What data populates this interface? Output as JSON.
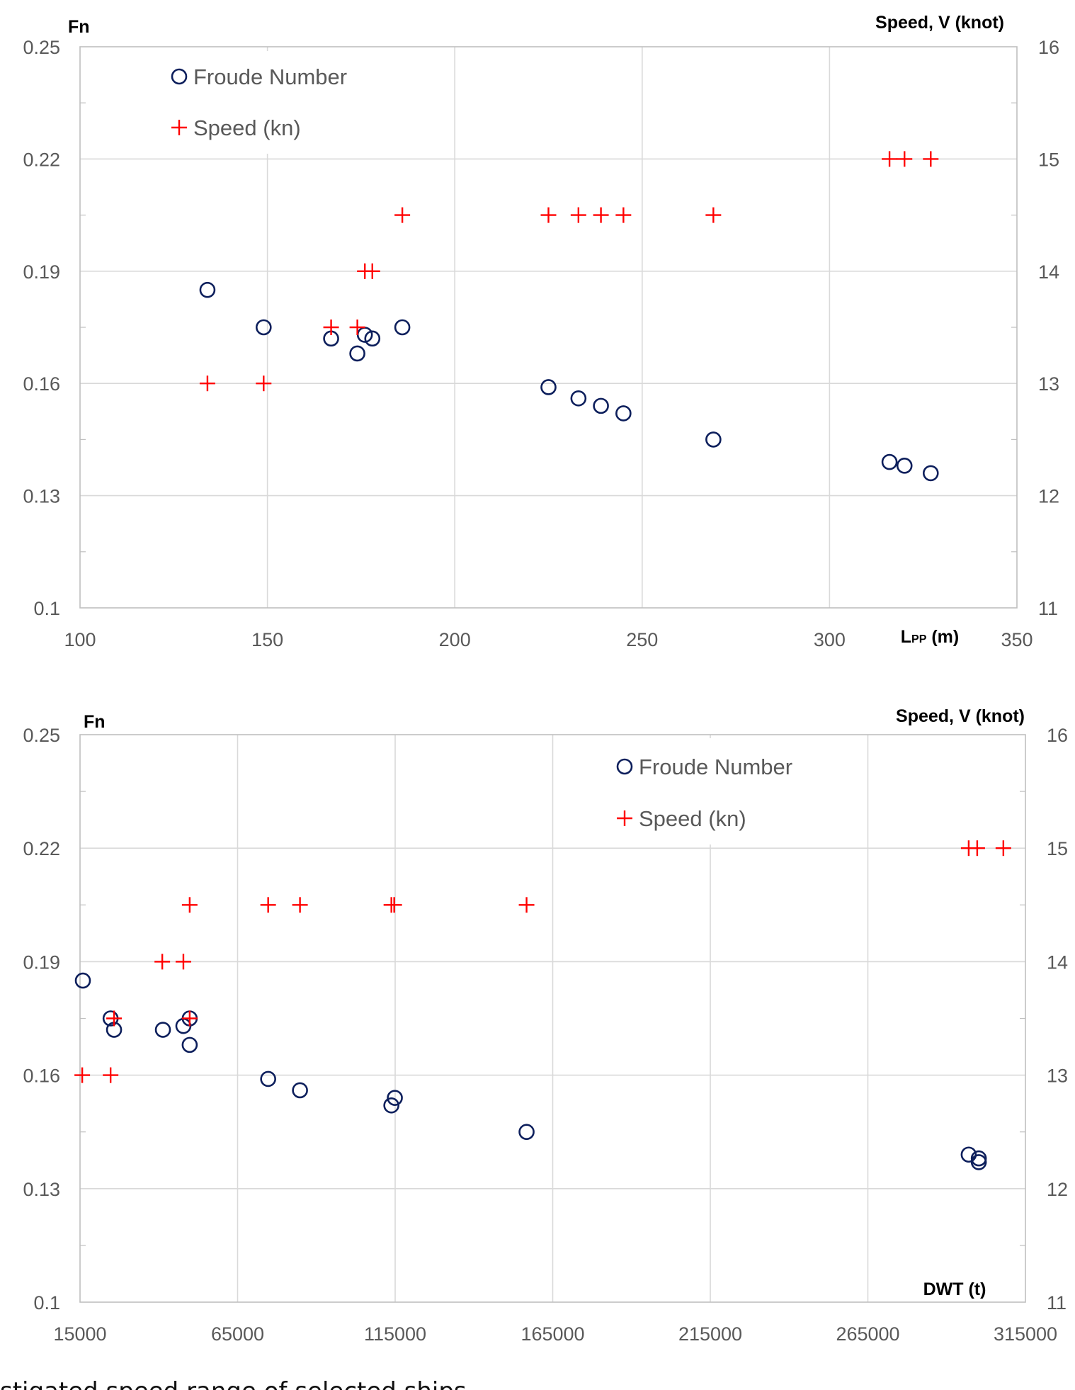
{
  "colors": {
    "froude": "#0d1f5c",
    "speed": "#ff0000",
    "grid": "#d9d9d9",
    "tick_text": "#595959"
  },
  "caption": "stigated speed range of selected ships",
  "chart_data": [
    {
      "type": "scatter",
      "title": "",
      "xlabel": "L",
      "xlabel_sub": "PP",
      "xlabel_suffix": " (m)",
      "ylabel": "Fn",
      "y2label": "Speed, V (knot)",
      "xlim": [
        100,
        350
      ],
      "ylim": [
        0.1,
        0.25
      ],
      "y2lim": [
        11,
        16
      ],
      "xticks": [
        100,
        150,
        200,
        250,
        300,
        350
      ],
      "yticks": [
        "0.1",
        "0.13",
        "0.16",
        "0.19",
        "0.22",
        "0.25"
      ],
      "y2ticks": [
        "11",
        "12",
        "13",
        "14",
        "15",
        "16"
      ],
      "grid": true,
      "legend_position": "top-left",
      "legend": [
        "Froude Number",
        "Speed (kn)"
      ],
      "series": [
        {
          "name": "Froude Number",
          "axis": "left",
          "marker": "circle",
          "points": [
            [
              134,
              0.185
            ],
            [
              149,
              0.175
            ],
            [
              167,
              0.172
            ],
            [
              174,
              0.168
            ],
            [
              176,
              0.173
            ],
            [
              178,
              0.172
            ],
            [
              186,
              0.175
            ],
            [
              225,
              0.159
            ],
            [
              233,
              0.156
            ],
            [
              239,
              0.154
            ],
            [
              245,
              0.152
            ],
            [
              269,
              0.145
            ],
            [
              316,
              0.139
            ],
            [
              320,
              0.138
            ],
            [
              327,
              0.136
            ]
          ]
        },
        {
          "name": "Speed (kn)",
          "axis": "right",
          "marker": "plus",
          "points": [
            [
              134,
              13
            ],
            [
              149,
              13
            ],
            [
              167,
              13.5
            ],
            [
              174,
              13.5
            ],
            [
              176,
              14
            ],
            [
              178,
              14
            ],
            [
              186,
              14.5
            ],
            [
              225,
              14.5
            ],
            [
              233,
              14.5
            ],
            [
              239,
              14.5
            ],
            [
              245,
              14.5
            ],
            [
              269,
              14.5
            ],
            [
              316,
              15
            ],
            [
              320,
              15
            ],
            [
              327,
              15
            ]
          ]
        }
      ]
    },
    {
      "type": "scatter",
      "title": "",
      "xlabel": "DWT (t)",
      "xlabel_sub": "",
      "xlabel_suffix": "",
      "ylabel": "Fn",
      "y2label": "Speed, V (knot)",
      "xlim": [
        15000,
        315000
      ],
      "ylim": [
        0.1,
        0.25
      ],
      "y2lim": [
        11,
        16
      ],
      "xticks": [
        15000,
        65000,
        115000,
        165000,
        215000,
        265000,
        315000
      ],
      "yticks": [
        "0.1",
        "0.13",
        "0.16",
        "0.19",
        "0.22",
        "0.25"
      ],
      "y2ticks": [
        "11",
        "12",
        "13",
        "14",
        "15",
        "16"
      ],
      "grid": true,
      "legend_position": "top-center-right",
      "legend": [
        "Froude Number",
        "Speed (kn)"
      ],
      "series": [
        {
          "name": "Froude Number",
          "axis": "left",
          "marker": "circle",
          "points": [
            [
              15900,
              0.185
            ],
            [
              24700,
              0.175
            ],
            [
              25800,
              0.172
            ],
            [
              41300,
              0.172
            ],
            [
              47800,
              0.173
            ],
            [
              49800,
              0.175
            ],
            [
              49800,
              0.168
            ],
            [
              74700,
              0.159
            ],
            [
              84800,
              0.156
            ],
            [
              114900,
              0.154
            ],
            [
              113800,
              0.152
            ],
            [
              156700,
              0.145
            ],
            [
              297000,
              0.139
            ],
            [
              300200,
              0.138
            ],
            [
              300200,
              0.137
            ]
          ]
        },
        {
          "name": "Speed (kn)",
          "axis": "right",
          "marker": "plus",
          "points": [
            [
              15700,
              13
            ],
            [
              24700,
              13
            ],
            [
              25800,
              13.5
            ],
            [
              41100,
              14
            ],
            [
              47800,
              14
            ],
            [
              49800,
              13.5
            ],
            [
              49800,
              14.5
            ],
            [
              74700,
              14.5
            ],
            [
              84800,
              14.5
            ],
            [
              113800,
              14.5
            ],
            [
              114700,
              14.5
            ],
            [
              156700,
              14.5
            ],
            [
              297000,
              15
            ],
            [
              299700,
              15
            ],
            [
              308000,
              15
            ]
          ]
        }
      ]
    }
  ]
}
